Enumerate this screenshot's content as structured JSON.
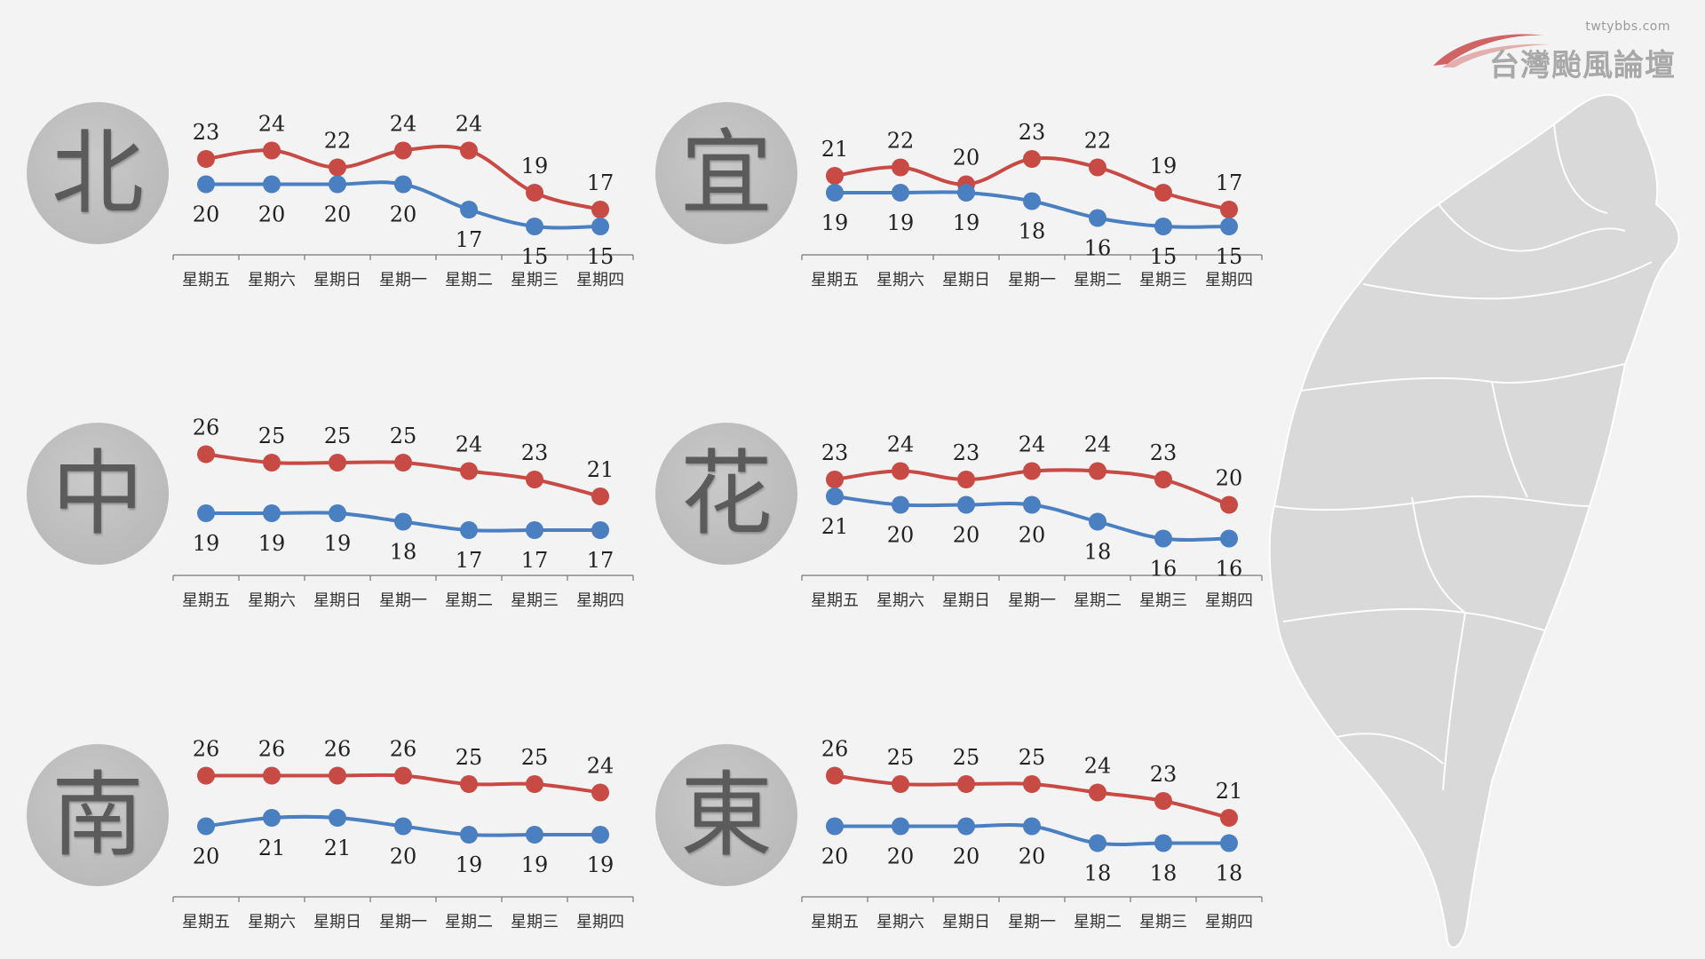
{
  "colors": {
    "high": "#c84a45",
    "low": "#4a7fc1"
  },
  "logo": {
    "url": "twtybbs.com",
    "title": "台灣颱風論壇"
  },
  "days": [
    "星期五",
    "星期六",
    "星期日",
    "星期一",
    "星期二",
    "星期三",
    "星期四"
  ],
  "chart_data": [
    {
      "type": "line",
      "region": "北",
      "categories": [
        "星期五",
        "星期六",
        "星期日",
        "星期一",
        "星期二",
        "星期三",
        "星期四"
      ],
      "series": [
        {
          "values": [
            23,
            24,
            22,
            24,
            24,
            19,
            17
          ]
        },
        {
          "values": [
            20,
            20,
            20,
            20,
            17,
            15,
            15
          ]
        }
      ]
    },
    {
      "type": "line",
      "region": "宜",
      "categories": [
        "星期五",
        "星期六",
        "星期日",
        "星期一",
        "星期二",
        "星期三",
        "星期四"
      ],
      "series": [
        {
          "values": [
            21,
            22,
            20,
            23,
            22,
            19,
            17
          ]
        },
        {
          "values": [
            19,
            19,
            19,
            18,
            16,
            15,
            15
          ]
        }
      ]
    },
    {
      "type": "line",
      "region": "中",
      "categories": [
        "星期五",
        "星期六",
        "星期日",
        "星期一",
        "星期二",
        "星期三",
        "星期四"
      ],
      "series": [
        {
          "values": [
            26,
            25,
            25,
            25,
            24,
            23,
            21
          ]
        },
        {
          "values": [
            19,
            19,
            19,
            18,
            17,
            17,
            17
          ]
        }
      ]
    },
    {
      "type": "line",
      "region": "花",
      "categories": [
        "星期五",
        "星期六",
        "星期日",
        "星期一",
        "星期二",
        "星期三",
        "星期四"
      ],
      "series": [
        {
          "values": [
            23,
            24,
            23,
            24,
            24,
            23,
            20
          ]
        },
        {
          "values": [
            21,
            20,
            20,
            20,
            18,
            16,
            16
          ]
        }
      ]
    },
    {
      "type": "line",
      "region": "南",
      "categories": [
        "星期五",
        "星期六",
        "星期日",
        "星期一",
        "星期二",
        "星期三",
        "星期四"
      ],
      "series": [
        {
          "values": [
            26,
            26,
            26,
            26,
            25,
            25,
            24
          ]
        },
        {
          "values": [
            20,
            21,
            21,
            20,
            19,
            19,
            19
          ]
        }
      ]
    },
    {
      "type": "line",
      "region": "東",
      "categories": [
        "星期五",
        "星期六",
        "星期日",
        "星期一",
        "星期二",
        "星期三",
        "星期四"
      ],
      "series": [
        {
          "values": [
            26,
            25,
            25,
            25,
            24,
            23,
            21
          ]
        },
        {
          "values": [
            20,
            20,
            20,
            20,
            18,
            18,
            18
          ]
        }
      ]
    }
  ]
}
